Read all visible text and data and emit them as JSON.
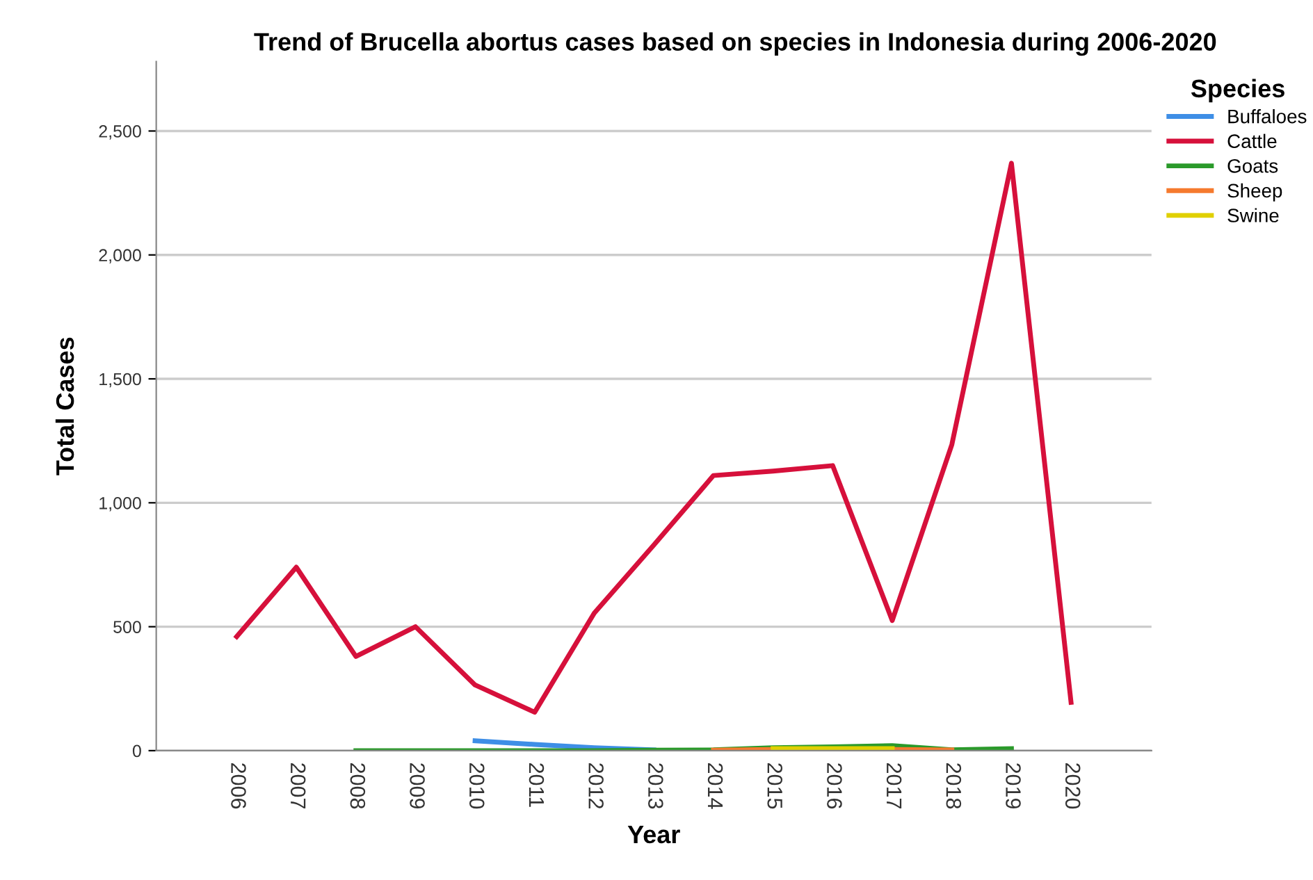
{
  "chart_data": {
    "type": "line",
    "title": "Trend of Brucella abortus cases based on species in Indonesia during 2006-2020",
    "xlabel": "Year",
    "ylabel": "Total Cases",
    "legend_title": "Species",
    "categories": [
      "2006",
      "2007",
      "2008",
      "2009",
      "2010",
      "2011",
      "2012",
      "2013",
      "2014",
      "2015",
      "2016",
      "2017",
      "2018",
      "2019",
      "2020"
    ],
    "series": [
      {
        "name": "Buffaloes",
        "color": "#3e8ee6",
        "values": [
          null,
          null,
          null,
          null,
          40,
          25,
          12,
          3,
          null,
          null,
          null,
          null,
          null,
          null,
          null
        ]
      },
      {
        "name": "Cattle",
        "color": "#d6103b",
        "values": [
          460,
          740,
          380,
          500,
          265,
          155,
          555,
          830,
          1110,
          1128,
          1150,
          525,
          1235,
          2370,
          195
        ]
      },
      {
        "name": "Goats",
        "color": "#2a9a2a",
        "values": [
          null,
          null,
          0,
          0,
          0,
          0,
          0,
          2,
          3,
          12,
          15,
          20,
          3,
          8,
          null
        ]
      },
      {
        "name": "Sheep",
        "color": "#f57a2e",
        "values": [
          null,
          null,
          null,
          null,
          null,
          null,
          null,
          null,
          2,
          5,
          5,
          5,
          3,
          null,
          null
        ]
      },
      {
        "name": "Swine",
        "color": "#e0d000",
        "values": [
          null,
          null,
          null,
          null,
          null,
          null,
          null,
          null,
          null,
          8,
          8,
          8,
          null,
          null,
          null
        ]
      }
    ],
    "ylim": [
      0,
      2780
    ],
    "yticks": [
      {
        "value": 0,
        "label": "0"
      },
      {
        "value": 500,
        "label": "500"
      },
      {
        "value": 1000,
        "label": "1,000"
      },
      {
        "value": 1500,
        "label": "1,500"
      },
      {
        "value": 2000,
        "label": "2,000"
      },
      {
        "value": 2500,
        "label": "2,500"
      }
    ],
    "grid": "y",
    "legend": "top right",
    "marker": "none",
    "line_style": "solid"
  }
}
